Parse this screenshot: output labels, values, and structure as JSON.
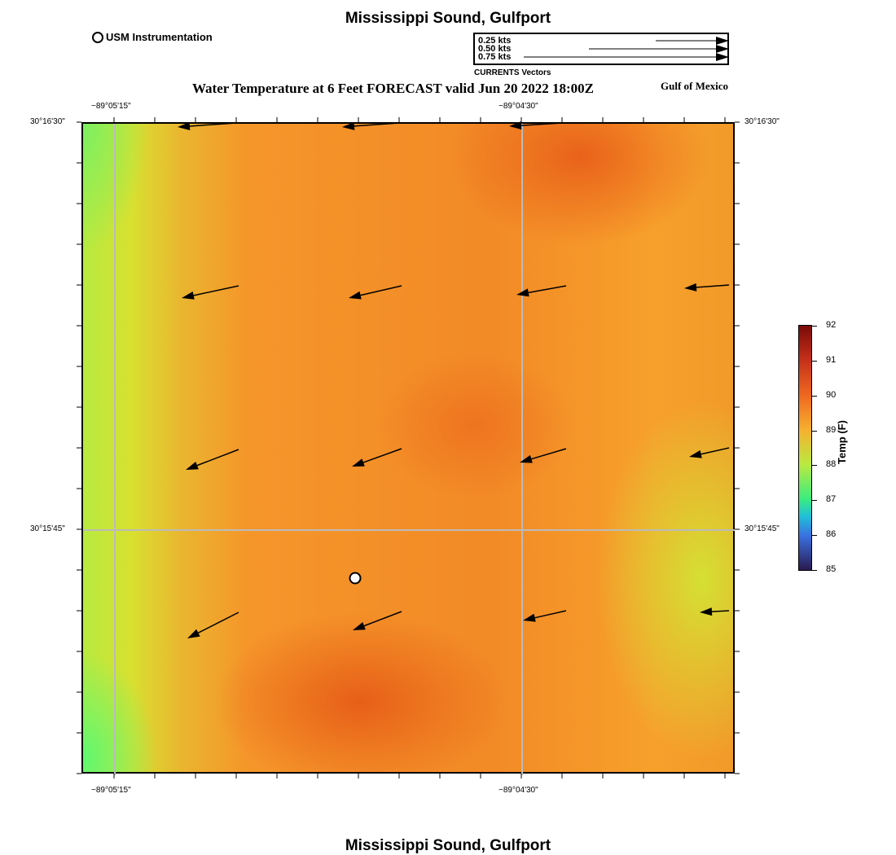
{
  "header": {
    "title": "Mississippi Sound, Gulfport",
    "marker_legend": "USM Instrumentation",
    "subtitle": "Water Temperature at 6 Feet FORECAST valid Jun 20 2022 18:00Z",
    "region": "Gulf of Mexico"
  },
  "vector_legend": {
    "items": [
      "0.25 kts",
      "0.50 kts",
      "0.75 kts"
    ],
    "label": "CURRENTS Vectors"
  },
  "axes": {
    "lon_ticks": [
      "−89°05'15\"",
      "−89°04'30\""
    ],
    "lat_ticks": [
      "30°16'30\"",
      "30°15'45\""
    ]
  },
  "colorbar": {
    "label": "Temp (F)",
    "ticks": [
      "92",
      "91",
      "90",
      "89",
      "88",
      "87",
      "86",
      "85"
    ],
    "min": 85,
    "max": 92
  },
  "footer": {
    "title": "Mississippi Sound, Gulfport"
  },
  "colors": {
    "background_main": "#f28a26",
    "warm": "#e9621a",
    "cool": "#7cf060"
  }
}
